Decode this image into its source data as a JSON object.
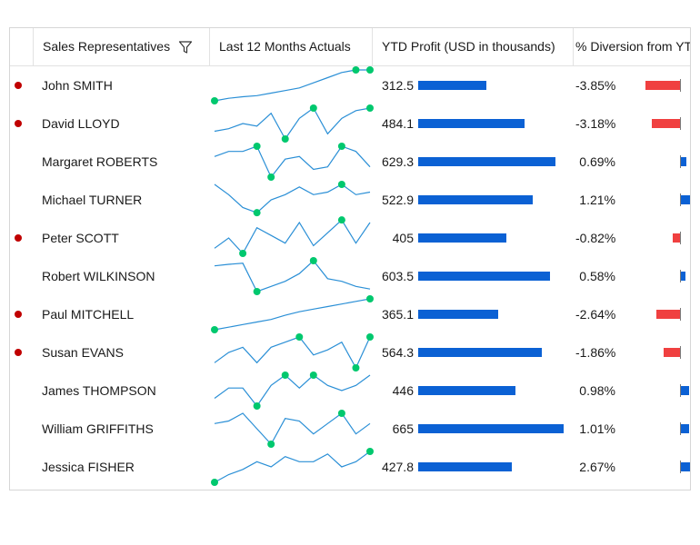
{
  "header": {
    "col_sales": "Sales Representatives",
    "col_last12": "Last 12 Months Actuals",
    "col_profit": "YTD Profit (USD in thousands)",
    "col_diversion": "% Diversion from YTD"
  },
  "colors": {
    "profit_bar": "#0b61d4",
    "negative": "#f04040",
    "positive": "#0b61d4",
    "marker": "#00c86e",
    "line": "#2a8fd6",
    "flag": "#c00000"
  },
  "chart_data": {
    "type": "table",
    "profit_max": 665,
    "diversion_range": [
      -4,
      1.5
    ],
    "rows": [
      {
        "name": "John SMITH",
        "flag": true,
        "profit": 312.5,
        "profit_label": "312.5",
        "diversion": -3.85,
        "diversion_label": "-3.85%",
        "sparkline": [
          1.0,
          1.5,
          1.8,
          2.0,
          2.5,
          3.0,
          3.5,
          4.5,
          5.5,
          6.5,
          7.0,
          7.0
        ],
        "markers": [
          0,
          10,
          11
        ]
      },
      {
        "name": "David LLOYD",
        "flag": true,
        "profit": 484.1,
        "profit_label": "484.1",
        "diversion": -3.18,
        "diversion_label": "-3.18%",
        "sparkline": [
          2.5,
          3.0,
          4.0,
          3.5,
          6.0,
          1.0,
          5.0,
          7.0,
          2.0,
          5.0,
          6.5,
          7.0
        ],
        "markers": [
          5,
          7,
          11
        ]
      },
      {
        "name": "Margaret ROBERTS",
        "flag": false,
        "profit": 629.3,
        "profit_label": "629.3",
        "diversion": 0.69,
        "diversion_label": "0.69%",
        "sparkline": [
          5.0,
          6.0,
          6.0,
          7.0,
          1.0,
          4.5,
          5.0,
          2.5,
          3.0,
          7.0,
          6.0,
          3.0
        ],
        "markers": [
          3,
          4,
          9
        ]
      },
      {
        "name": "Michael TURNER",
        "flag": false,
        "profit": 522.9,
        "profit_label": "522.9",
        "diversion": 1.21,
        "diversion_label": "1.21%",
        "sparkline": [
          7.0,
          5.0,
          2.5,
          1.5,
          4.0,
          5.0,
          6.5,
          5.0,
          5.5,
          7.0,
          5.0,
          5.5
        ],
        "markers": [
          3,
          9
        ]
      },
      {
        "name": "Peter SCOTT",
        "flag": true,
        "profit": 405,
        "profit_label": "405",
        "diversion": -0.82,
        "diversion_label": "-0.82%",
        "sparkline": [
          2.0,
          4.0,
          1.0,
          6.0,
          4.5,
          3.0,
          7.0,
          2.5,
          5.0,
          7.5,
          3.0,
          7.0
        ],
        "markers": [
          2,
          9
        ]
      },
      {
        "name": "Robert WILKINSON",
        "flag": false,
        "profit": 603.5,
        "profit_label": "603.5",
        "diversion": 0.58,
        "diversion_label": "0.58%",
        "sparkline": [
          6.0,
          6.3,
          6.5,
          1.0,
          2.0,
          3.0,
          4.5,
          7.0,
          3.5,
          3.0,
          2.0,
          1.5
        ],
        "markers": [
          3,
          7
        ]
      },
      {
        "name": "Paul MITCHELL",
        "flag": true,
        "profit": 365.1,
        "profit_label": "365.1",
        "diversion": -2.64,
        "diversion_label": "-2.64%",
        "sparkline": [
          1.0,
          1.5,
          2.0,
          2.5,
          3.0,
          3.8,
          4.5,
          5.0,
          5.5,
          6.0,
          6.5,
          7.0
        ],
        "markers": [
          0,
          11
        ]
      },
      {
        "name": "Susan EVANS",
        "flag": true,
        "profit": 564.3,
        "profit_label": "564.3",
        "diversion": -1.86,
        "diversion_label": "-1.86%",
        "sparkline": [
          2.0,
          4.0,
          5.0,
          2.0,
          5.0,
          6.0,
          7.0,
          3.5,
          4.5,
          6.0,
          1.0,
          7.0
        ],
        "markers": [
          6,
          10,
          11
        ]
      },
      {
        "name": "James THOMPSON",
        "flag": false,
        "profit": 446,
        "profit_label": "446",
        "diversion": 0.98,
        "diversion_label": "0.98%",
        "sparkline": [
          2.5,
          4.5,
          4.5,
          1.0,
          5.0,
          7.0,
          4.5,
          7.0,
          5.0,
          4.0,
          5.0,
          7.0
        ],
        "markers": [
          3,
          5,
          7
        ]
      },
      {
        "name": "William GRIFFITHS",
        "flag": false,
        "profit": 665,
        "profit_label": "665",
        "diversion": 1.01,
        "diversion_label": "1.01%",
        "sparkline": [
          5.0,
          5.5,
          7.0,
          4.0,
          1.0,
          6.0,
          5.5,
          3.0,
          5.0,
          7.0,
          3.0,
          5.0
        ],
        "markers": [
          4,
          9
        ]
      },
      {
        "name": "Jessica FISHER",
        "flag": false,
        "profit": 427.8,
        "profit_label": "427.8",
        "diversion": 2.67,
        "diversion_label": "2.67%",
        "sparkline": [
          1.0,
          2.5,
          3.5,
          5.0,
          4.0,
          6.0,
          5.0,
          5.0,
          6.5,
          4.0,
          5.0,
          7.0
        ],
        "markers": [
          0,
          11
        ]
      }
    ]
  }
}
